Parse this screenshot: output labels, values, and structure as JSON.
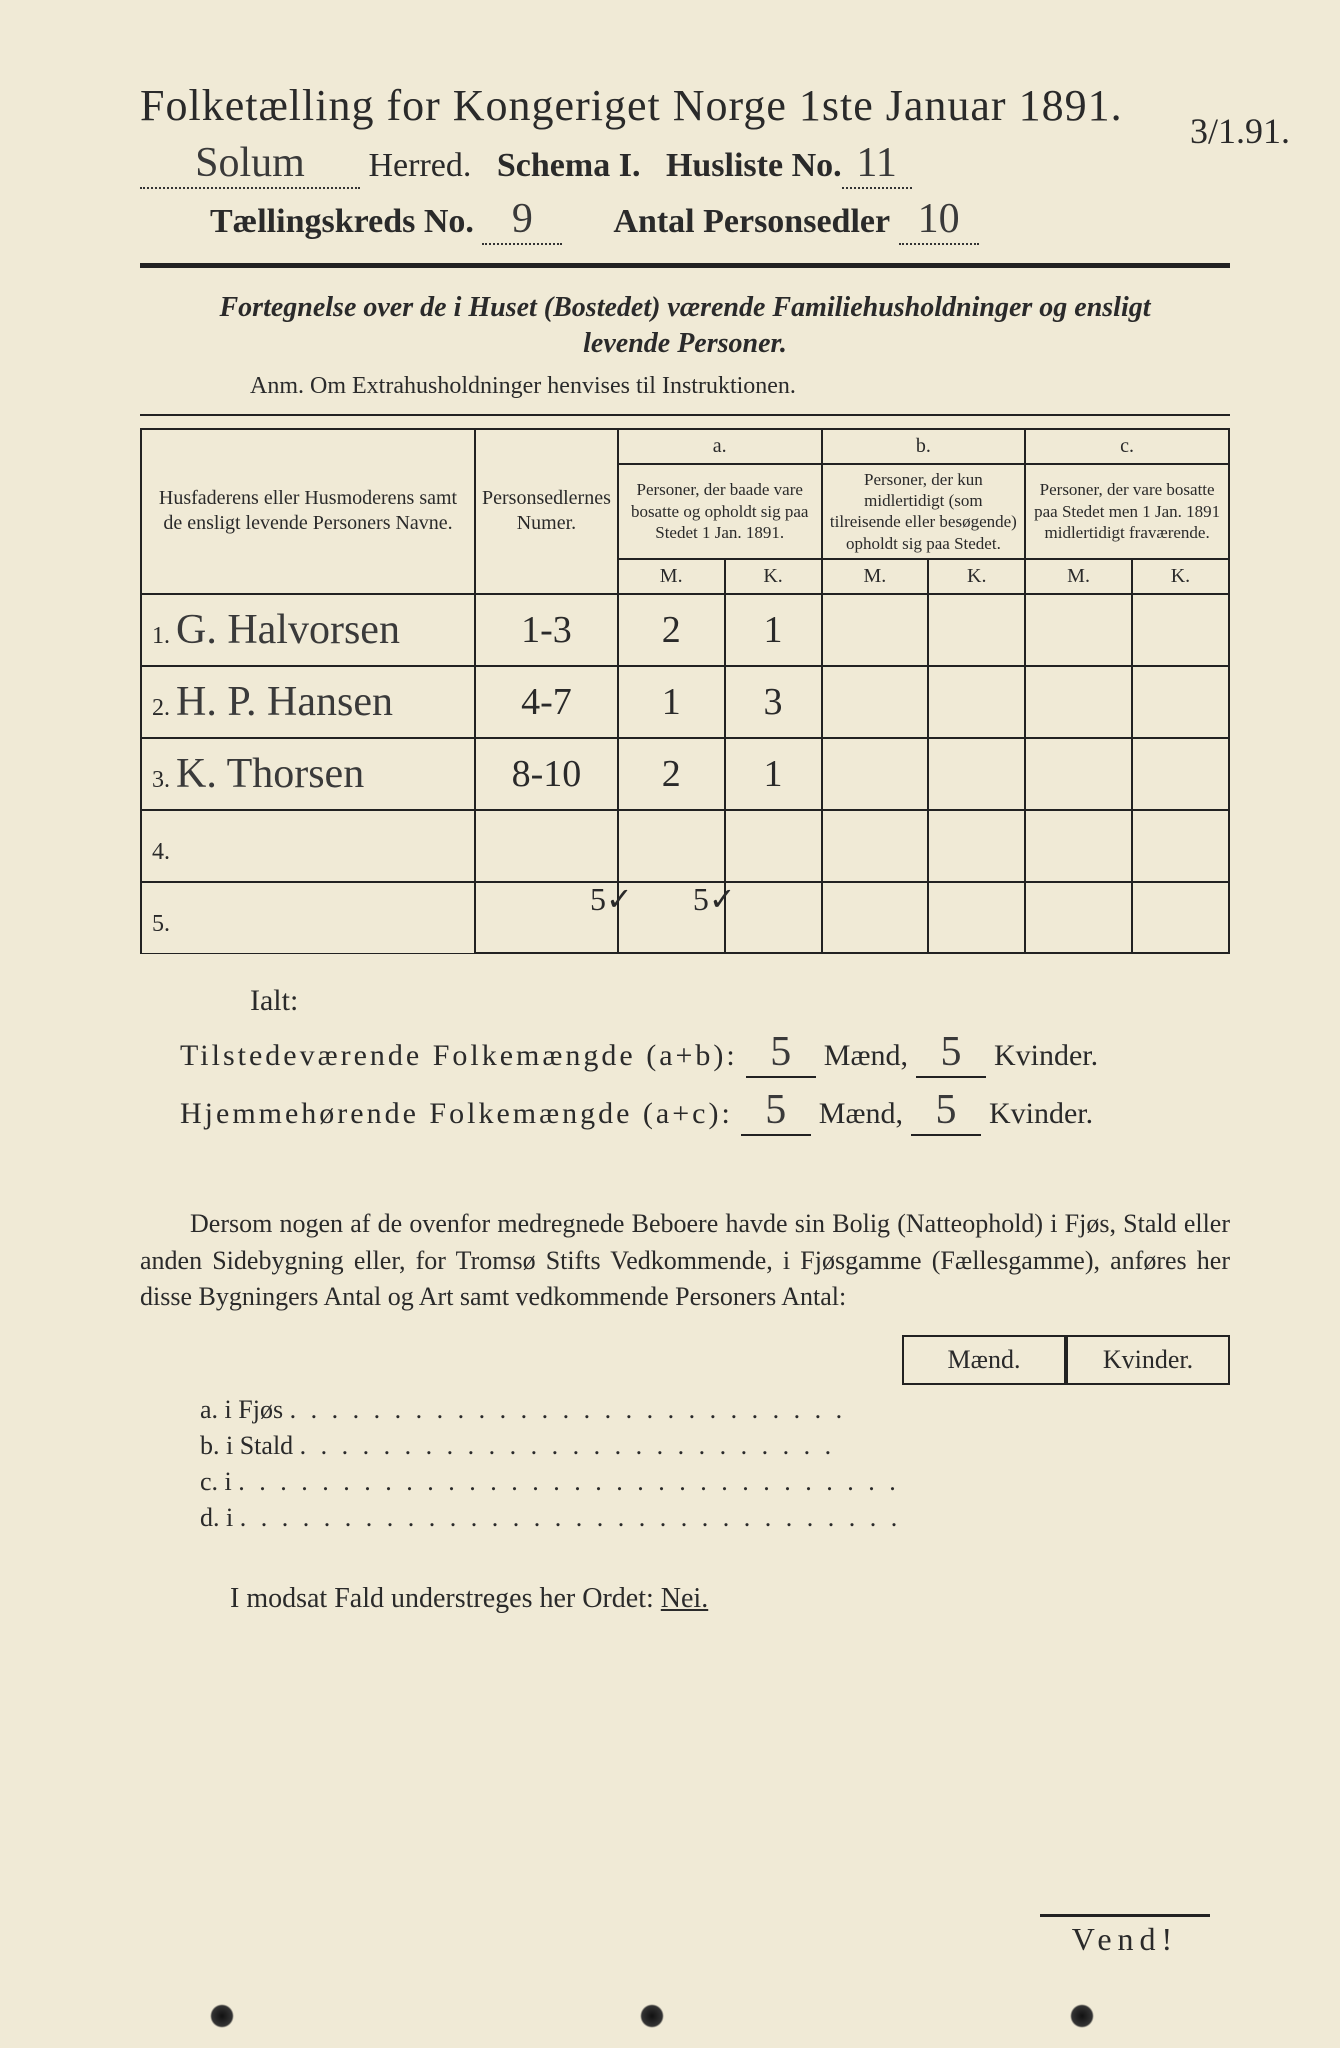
{
  "header": {
    "title": "Folketælling for Kongeriget Norge 1ste Januar 1891.",
    "herred_hw": "Solum",
    "herred_label": "Herred.",
    "schema": "Schema I.",
    "husliste_label": "Husliste No.",
    "husliste_no": "11",
    "date_note": "3/1.91.",
    "tkreds_label": "Tællingskreds No.",
    "tkreds_no": "9",
    "antal_label": "Antal Personsedler",
    "antal_no": "10"
  },
  "subtitle": "Fortegnelse over de i Huset (Bostedet) værende Familiehusholdninger og ensligt levende Personer.",
  "anm": "Anm. Om Extrahusholdninger henvises til Instruktionen.",
  "table": {
    "head_name": "Husfaderens eller Husmoderens samt de ensligt levende Personers Navne.",
    "head_num": "Personsedlernes Numer.",
    "head_a_top": "a.",
    "head_a": "Personer, der baade vare bosatte og opholdt sig paa Stedet 1 Jan. 1891.",
    "head_b_top": "b.",
    "head_b": "Personer, der kun midlertidigt (som tilreisende eller besøgende) opholdt sig paa Stedet.",
    "head_c_top": "c.",
    "head_c": "Personer, der vare bosatte paa Stedet men 1 Jan. 1891 midlertidigt fraværende.",
    "m": "M.",
    "k": "K.",
    "rows": [
      {
        "n": "1.",
        "name": "G. Halvorsen",
        "num": "1-3",
        "am": "2",
        "ak": "1",
        "bm": "",
        "bk": "",
        "cm": "",
        "ck": ""
      },
      {
        "n": "2.",
        "name": "H. P. Hansen",
        "num": "4-7",
        "am": "1",
        "ak": "3",
        "bm": "",
        "bk": "",
        "cm": "",
        "ck": ""
      },
      {
        "n": "3.",
        "name": "K. Thorsen",
        "num": "8-10",
        "am": "2",
        "ak": "1",
        "bm": "",
        "bk": "",
        "cm": "",
        "ck": ""
      },
      {
        "n": "4.",
        "name": "",
        "num": "",
        "am": "",
        "ak": "",
        "bm": "",
        "bk": "",
        "cm": "",
        "ck": ""
      },
      {
        "n": "5.",
        "name": "",
        "num": "",
        "am": "",
        "ak": "",
        "bm": "",
        "bk": "",
        "cm": "",
        "ck": ""
      }
    ],
    "ialt": "Ialt:",
    "tally_m": "5✓",
    "tally_k": "5✓"
  },
  "totals": {
    "line1_label": "Tilstedeværende Folkemængde (a+b):",
    "line1_m": "5",
    "line1_k": "5",
    "line2_label": "Hjemmehørende Folkemængde (a+c):",
    "line2_m": "5",
    "line2_k": "5",
    "maend": "Mænd,",
    "kvinder": "Kvinder."
  },
  "para": "Dersom nogen af de ovenfor medregnede Beboere havde sin Bolig (Natteophold) i Fjøs, Stald eller anden Sidebygning eller, for Tromsø Stifts Vedkommende, i Fjøsgamme (Fællesgamme), anføres her disse Bygningers Antal og Art samt vedkommende Personers Antal:",
  "mk": {
    "m": "Mænd.",
    "k": "Kvinder."
  },
  "bldg": {
    "a": "a.   i      Fjøs",
    "b": "b.   i      Stald",
    "c": "c.   i",
    "d": "d.   i"
  },
  "nei": "I modsat Fald understreges her Ordet: ",
  "nei_word": "Nei.",
  "vend": "Vend!"
}
